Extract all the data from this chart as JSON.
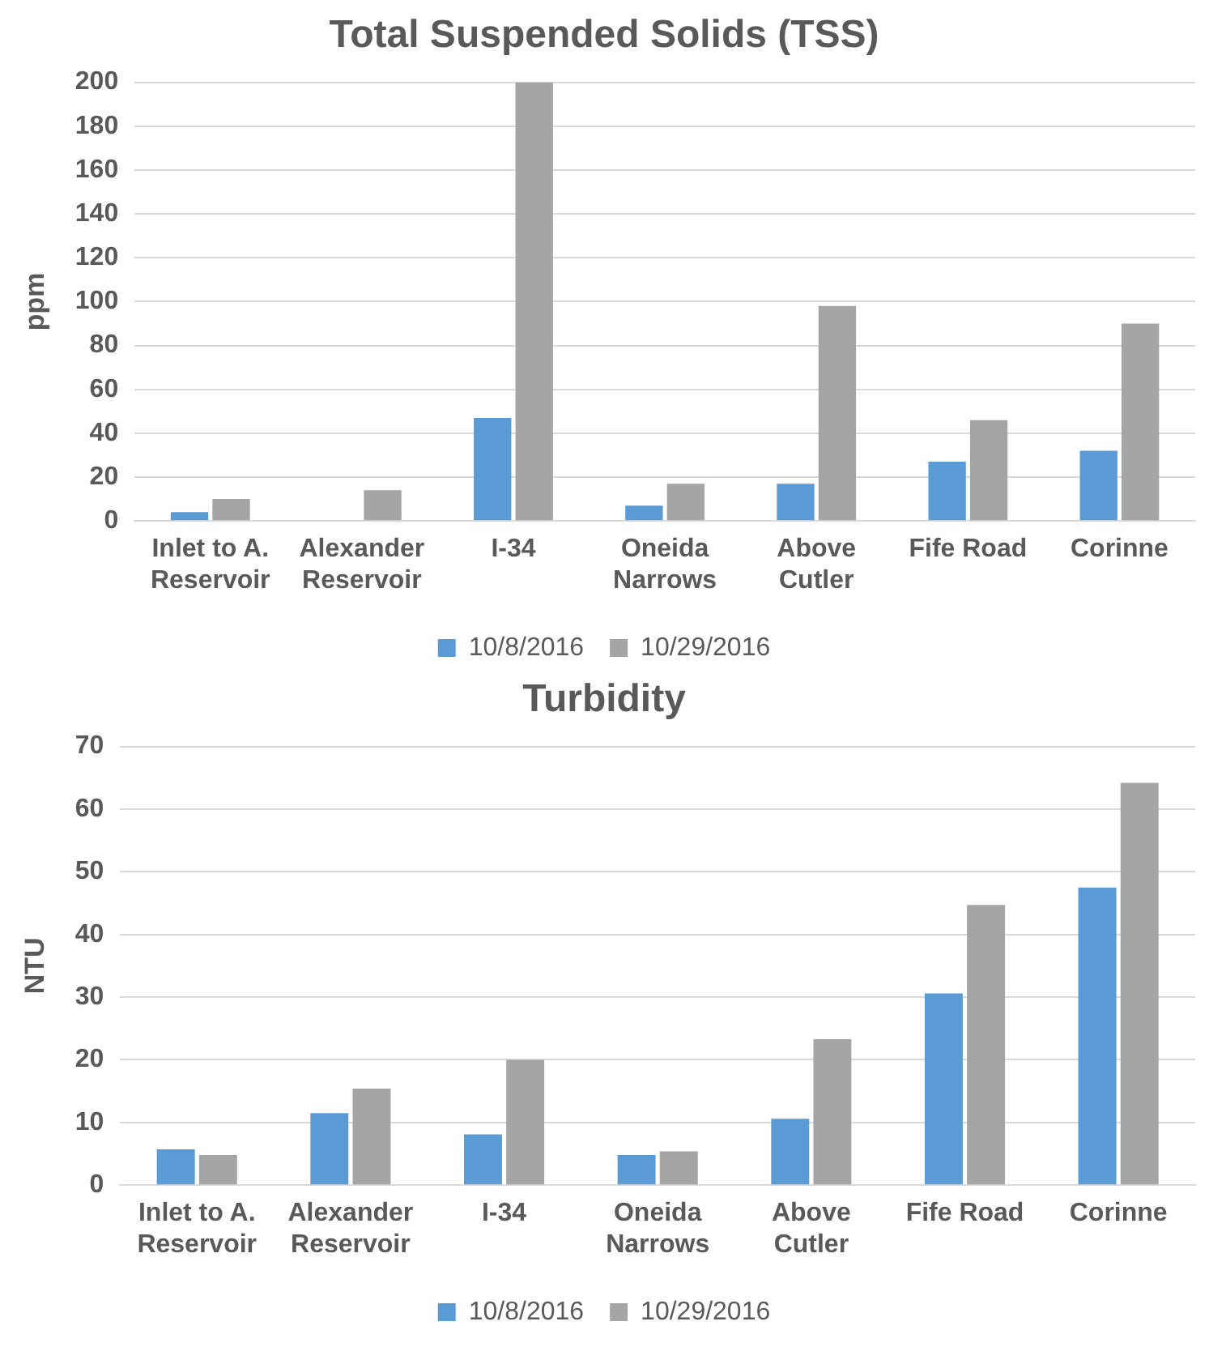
{
  "chart_data": [
    {
      "type": "bar",
      "title": "Total Suspended Solids (TSS)",
      "ylabel": "ppm",
      "categories": [
        "Inlet to A. Reservoir",
        "Alexander Reservoir",
        "I-34",
        "Oneida Narrows",
        "Above Cutler",
        "Fife Road",
        "Corinne"
      ],
      "series": [
        {
          "name": "10/8/2016",
          "color": "#5b9bd5",
          "values": [
            4,
            null,
            47,
            7,
            17,
            27,
            32
          ]
        },
        {
          "name": "10/29/2016",
          "color": "#a5a5a5",
          "values": [
            10,
            14,
            200,
            17,
            98,
            46,
            90
          ]
        }
      ],
      "ylim": [
        0,
        200
      ],
      "yticks": [
        0,
        20,
        40,
        60,
        80,
        100,
        120,
        140,
        160,
        180,
        200
      ],
      "grid": "y",
      "legend": "bottom"
    },
    {
      "type": "bar",
      "title": "Turbidity",
      "ylabel": "NTU",
      "categories": [
        "Inlet to A. Reservoir",
        "Alexander Reservoir",
        "I-34",
        "Oneida Narrows",
        "Above Cutler",
        "Fife Road",
        "Corinne"
      ],
      "series": [
        {
          "name": "10/8/2016",
          "color": "#5b9bd5",
          "values": [
            5.7,
            11.5,
            8.1,
            4.8,
            10.6,
            30.6,
            47.5
          ]
        },
        {
          "name": "10/29/2016",
          "color": "#a5a5a5",
          "values": [
            4.8,
            15.4,
            20,
            5.4,
            23.3,
            44.7,
            64.2
          ]
        }
      ],
      "ylim": [
        0,
        70
      ],
      "yticks": [
        0,
        10,
        20,
        30,
        40,
        50,
        60,
        70
      ],
      "grid": "y",
      "legend": "bottom"
    }
  ]
}
